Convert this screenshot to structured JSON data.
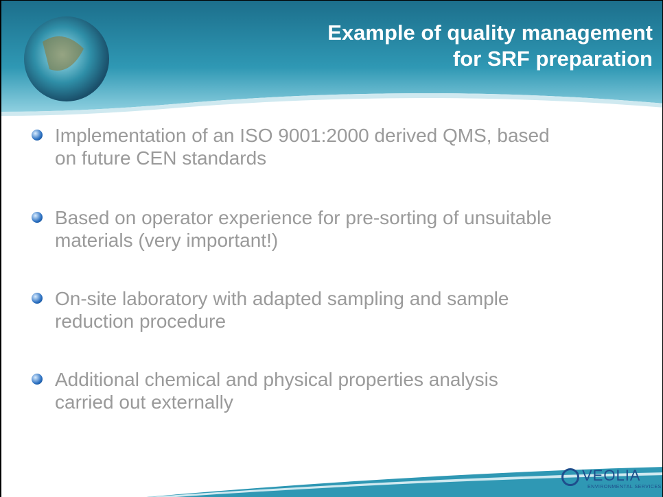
{
  "header": {
    "title_lines": [
      "Example of quality management",
      "for SRF preparation"
    ]
  },
  "bullets": [
    {
      "lines": [
        "Implementation of an ISO 9001:2000 derived QMS, based",
        "on future CEN standards"
      ]
    },
    {
      "lines": [
        "Based on operator experience for pre-sorting of unsuitable",
        "materials (very important!)"
      ]
    },
    {
      "lines": [
        "On-site laboratory with adapted sampling and sample",
        "reduction procedure"
      ]
    },
    {
      "lines": [
        "Additional chemical and physical properties analysis",
        "carried out externally"
      ]
    }
  ],
  "logo": {
    "name": "VEOLIA",
    "subtitle": "ENVIRONMENTAL SERVICES"
  }
}
